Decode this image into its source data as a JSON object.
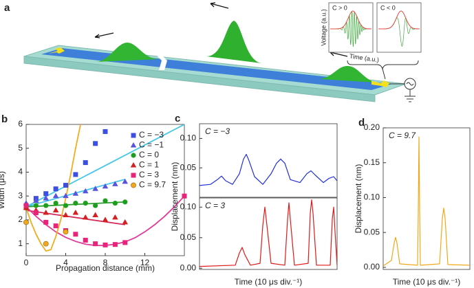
{
  "diagram": {
    "label": "a",
    "insets": [
      "C > 0",
      "C < 0"
    ],
    "inset_ylabel": "Voltage (a.u.)",
    "inset_xlabel": "Time (a.u.)"
  },
  "chart_data": [
    {
      "type": "scatter",
      "panel": "b",
      "xlabel": "Propagation distance (mm)",
      "ylabel": "Width (μs)",
      "xlim": [
        0,
        16
      ],
      "ylim": [
        0.5,
        6
      ],
      "xticks": [
        0,
        4,
        8,
        12
      ],
      "yticks": [
        1,
        2,
        3,
        4,
        5,
        6
      ],
      "legend": "upper right",
      "series": [
        {
          "name": "C = −3",
          "color": "#3c4fe0",
          "marker": "square",
          "x": [
            0,
            1,
            2,
            3,
            4,
            5,
            6,
            7,
            8
          ],
          "values": [
            2.6,
            2.9,
            3.1,
            3.3,
            3.45,
            3.9,
            4.4,
            5.2,
            5.7
          ],
          "fit_color": "#45c6ea",
          "fit_x": [
            0,
            16
          ],
          "fit_values": [
            2.55,
            6
          ]
        },
        {
          "name": "C = −1",
          "color": "#5a54dc",
          "marker": "triangle",
          "x": [
            0,
            1,
            2,
            3,
            4,
            5,
            6,
            7,
            8,
            9,
            10
          ],
          "values": [
            2.7,
            2.8,
            2.9,
            3.0,
            3.0,
            3.1,
            3.2,
            3.3,
            3.4,
            3.5,
            3.6
          ],
          "fit_color": "#45c6ea",
          "fit_x": [
            0,
            10
          ],
          "fit_values": [
            2.55,
            3.7
          ]
        },
        {
          "name": "C = 0",
          "color": "#1e9e1e",
          "marker": "circle",
          "x": [
            0,
            1,
            2,
            3,
            4,
            5,
            6,
            7,
            8,
            9,
            10
          ],
          "values": [
            2.5,
            2.6,
            2.6,
            2.7,
            2.6,
            2.7,
            2.7,
            2.6,
            2.8,
            2.7,
            2.75
          ],
          "fit_color": "#2e9e2e",
          "fit_x": [
            0,
            10
          ],
          "fit_values": [
            2.55,
            2.75
          ]
        },
        {
          "name": "C = 1",
          "color": "#d42020",
          "marker": "triangle",
          "x": [
            0,
            1,
            2,
            3,
            4,
            5,
            6,
            7,
            8,
            9,
            10
          ],
          "values": [
            2.5,
            2.4,
            2.3,
            2.4,
            2.2,
            2.3,
            2.1,
            2.2,
            2.0,
            2.1,
            1.9
          ],
          "fit_color": "#d42a5a",
          "fit_x": [
            0,
            10
          ],
          "fit_values": [
            2.4,
            1.8
          ]
        },
        {
          "name": "C = 3",
          "color": "#e8237a",
          "marker": "square",
          "x": [
            0,
            1,
            2,
            3,
            4,
            5,
            6,
            7,
            8,
            9,
            10,
            16
          ],
          "values": [
            2.6,
            2.3,
            1.9,
            1.75,
            1.55,
            1.4,
            1.15,
            1.0,
            0.95,
            0.97,
            1.05,
            3.0
          ],
          "fit_color": "#e0379a",
          "fit_x": [
            0,
            1,
            2,
            3,
            4,
            5,
            6,
            7,
            8,
            9,
            10,
            11,
            12,
            13,
            14,
            15,
            16
          ],
          "fit_values": [
            2.55,
            2.15,
            1.8,
            1.5,
            1.27,
            1.1,
            0.98,
            0.93,
            0.93,
            0.98,
            1.08,
            1.25,
            1.5,
            1.8,
            2.15,
            2.55,
            3.0
          ]
        },
        {
          "name": "C = 9.7",
          "color": "#f2a81d",
          "marker": "circle",
          "x": [
            0,
            2,
            4
          ],
          "values": [
            1.9,
            1.0,
            1.5
          ],
          "fit_color": "#f2ac1c",
          "fit_x": [
            0,
            0.5,
            1,
            1.5,
            2,
            2.5,
            3,
            3.5,
            4,
            4.5,
            5,
            5.5
          ],
          "fit_values": [
            2.5,
            1.9,
            1.4,
            1.0,
            0.7,
            0.75,
            1.3,
            2.0,
            2.9,
            3.9,
            5.0,
            6.0
          ]
        }
      ]
    },
    {
      "type": "line",
      "panel": "c",
      "annotation": "C = −3",
      "ylabel": "Displacement (nm)",
      "xlim": [
        0,
        10
      ],
      "ylim": [
        0,
        0.125
      ],
      "yticks": [
        0.05,
        {
          "value": 0.1,
          "label": "0.10"
        }
      ],
      "series": [
        {
          "color": "#1f2fe0",
          "x": [
            0,
            0.8,
            1.3,
            1.6,
            1.9,
            2.4,
            2.9,
            3.2,
            3.4,
            3.6,
            4.0,
            4.6,
            5.2,
            5.6,
            5.9,
            6.2,
            6.6,
            7.3,
            7.8,
            8.1,
            8.4,
            9.0,
            9.4,
            9.75,
            10
          ],
          "values": [
            0.02,
            0.022,
            0.03,
            0.036,
            0.028,
            0.022,
            0.04,
            0.065,
            0.073,
            0.062,
            0.035,
            0.022,
            0.04,
            0.058,
            0.065,
            0.058,
            0.03,
            0.025,
            0.04,
            0.045,
            0.038,
            0.025,
            0.032,
            0.035,
            0.028
          ]
        }
      ]
    },
    {
      "type": "line",
      "annotation": "C = 3",
      "xlabel": "Time (10 μs div.⁻¹)",
      "xlim": [
        0,
        10
      ],
      "ylim": [
        -0.002,
        0.115
      ],
      "yticks": [
        {
          "value": 0,
          "label": "0.00"
        },
        0.05,
        {
          "value": 0.1,
          "label": "0.10"
        }
      ],
      "series": [
        {
          "color": "#e01818",
          "x": [
            0,
            2.6,
            2.9,
            3.1,
            3.3,
            3.7,
            4.4,
            4.6,
            4.75,
            4.9,
            5.2,
            6.2,
            6.4,
            6.5,
            6.6,
            6.9,
            7.9,
            8.05,
            8.15,
            8.25,
            8.5,
            9.5,
            9.65,
            9.75,
            9.85,
            10
          ],
          "values": [
            0.003,
            0.005,
            0.025,
            0.034,
            0.022,
            0.005,
            0.008,
            0.07,
            0.1,
            0.07,
            0.008,
            0.005,
            0.08,
            0.107,
            0.08,
            0.005,
            0.008,
            0.09,
            0.112,
            0.09,
            0.005,
            0.005,
            0.08,
            0.1,
            0.06,
            0.005
          ]
        }
      ]
    },
    {
      "type": "line",
      "panel": "d",
      "annotation": "C = 9.7",
      "ylabel": "Displacement (nm)",
      "xlabel": "Time (10 μs div.⁻¹)",
      "xlim": [
        0,
        6.3
      ],
      "ylim": [
        -0.003,
        0.2
      ],
      "yticks": [
        {
          "value": 0,
          "label": "0.00"
        },
        0.05,
        {
          "value": 0.1,
          "label": "0.10"
        },
        0.15,
        {
          "value": 0.2,
          "label": "0.20"
        }
      ],
      "series": [
        {
          "color": "#f0a818",
          "x": [
            0,
            0.6,
            0.8,
            0.9,
            1.0,
            1.2,
            2.5,
            2.55,
            2.6,
            2.65,
            2.7,
            4.1,
            4.3,
            4.4,
            4.5,
            4.7,
            6.3
          ],
          "values": [
            0.002,
            0.01,
            0.035,
            0.043,
            0.035,
            0.005,
            0.003,
            0.08,
            0.187,
            0.08,
            0.003,
            0.005,
            0.07,
            0.085,
            0.07,
            0.004,
            0.003
          ]
        }
      ]
    }
  ]
}
